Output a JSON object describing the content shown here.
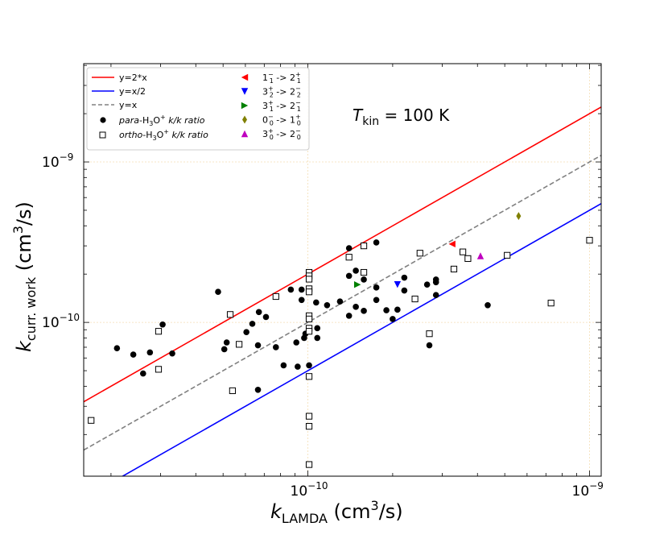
{
  "chart_data": {
    "type": "scatter",
    "xscale": "log",
    "yscale": "log",
    "xlim": [
      1.6e-11,
      1.1e-09
    ],
    "ylim": [
      1.1e-11,
      4.1e-09
    ],
    "xticks": [
      {
        "value": 1e-10,
        "base": "10",
        "exp": "−10"
      },
      {
        "value": 1e-09,
        "base": "10",
        "exp": "−9"
      }
    ],
    "yticks": [
      {
        "value": 1e-10,
        "base": "10",
        "exp": "−10"
      },
      {
        "value": 1e-09,
        "base": "10",
        "exp": "−9"
      }
    ],
    "grid": true,
    "xlabel": {
      "main": "k",
      "sub": "LAMDA",
      "unit_pre": " (cm",
      "unit_exp": "3",
      "unit_post": "/s)"
    },
    "ylabel": {
      "main": "k",
      "sub": "curr. work",
      "unit_pre": " (cm",
      "unit_exp": "3",
      "unit_post": "/s)"
    },
    "annotation": {
      "main": "T",
      "sub": "kin",
      "rest": " = 100 K"
    },
    "lines": [
      {
        "name": "y=2*x",
        "factor": 2,
        "color": "#ff0000",
        "style": "solid"
      },
      {
        "name": "y=x/2",
        "factor": 0.5,
        "color": "#0000ff",
        "style": "solid"
      },
      {
        "name": "y=x",
        "factor": 1,
        "color": "#808080",
        "style": "dashed"
      }
    ],
    "legend": {
      "placement": "top-left",
      "col1": [
        {
          "label": "y=2*x"
        },
        {
          "label": "y=x/2"
        },
        {
          "label": "y=x"
        },
        {
          "pre": "para",
          "mid": "-H",
          "sub1": "3",
          "mid2": "O",
          "sup": "+",
          "post": " k/k ratio"
        },
        {
          "pre": "ortho",
          "mid": "-H",
          "sub1": "3",
          "mid2": "O",
          "sup": "+",
          "post": " k/k ratio"
        }
      ]
    },
    "series": [
      {
        "name": "para-H3O+ k/k ratio",
        "marker": "filled-circle",
        "color": "#000000",
        "points": [
          [
            2.1e-11,
            6.9e-11
          ],
          [
            2.4e-11,
            6.3e-11
          ],
          [
            2.6e-11,
            4.8e-11
          ],
          [
            2.75e-11,
            6.5e-11
          ],
          [
            3.05e-11,
            9.7e-11
          ],
          [
            3.3e-11,
            6.4e-11
          ],
          [
            4.8e-11,
            1.55e-10
          ],
          [
            5.05e-11,
            6.8e-11
          ],
          [
            5.15e-11,
            7.5e-11
          ],
          [
            6.05e-11,
            8.7e-11
          ],
          [
            6.35e-11,
            9.8e-11
          ],
          [
            6.7e-11,
            1.16e-10
          ],
          [
            6.65e-11,
            3.8e-11
          ],
          [
            6.65e-11,
            7.2e-11
          ],
          [
            7.1e-11,
            1.08e-10
          ],
          [
            7.7e-11,
            7e-11
          ],
          [
            8.2e-11,
            5.4e-11
          ],
          [
            8.7e-11,
            1.6e-10
          ],
          [
            9.2e-11,
            5.3e-11
          ],
          [
            9.1e-11,
            7.5e-11
          ],
          [
            9.5e-11,
            1.38e-10
          ],
          [
            9.5e-11,
            1.6e-10
          ],
          [
            9.7e-11,
            8e-11
          ],
          [
            9.8e-11,
            8.5e-11
          ],
          [
            1.01e-10,
            5.4e-11
          ],
          [
            1.01e-10,
            9e-11
          ],
          [
            1.01e-10,
            1.05e-10
          ],
          [
            1.07e-10,
            1.33e-10
          ],
          [
            1.08e-10,
            8e-11
          ],
          [
            1.08e-10,
            9.2e-11
          ],
          [
            1.17e-10,
            1.28e-10
          ],
          [
            1.3e-10,
            1.35e-10
          ],
          [
            1.4e-10,
            2.9e-10
          ],
          [
            1.4e-10,
            1.95e-10
          ],
          [
            1.4e-10,
            1.1e-10
          ],
          [
            1.48e-10,
            2.1e-10
          ],
          [
            1.48e-10,
            1.25e-10
          ],
          [
            1.58e-10,
            1.85e-10
          ],
          [
            1.58e-10,
            1.18e-10
          ],
          [
            1.75e-10,
            3.15e-10
          ],
          [
            1.75e-10,
            1.65e-10
          ],
          [
            1.75e-10,
            1.38e-10
          ],
          [
            1.9e-10,
            1.19e-10
          ],
          [
            2e-10,
            1.05e-10
          ],
          [
            2.08e-10,
            1.2e-10
          ],
          [
            2.2e-10,
            1.9e-10
          ],
          [
            2.2e-10,
            1.58e-10
          ],
          [
            2.65e-10,
            1.72e-10
          ],
          [
            2.7e-10,
            7.2e-11
          ],
          [
            2.85e-10,
            1.85e-10
          ],
          [
            2.85e-10,
            1.78e-10
          ],
          [
            2.85e-10,
            1.48e-10
          ],
          [
            4.35e-10,
            1.28e-10
          ]
        ]
      },
      {
        "name": "ortho-H3O+ k/k ratio",
        "marker": "open-square",
        "color": "#000000",
        "points": [
          [
            1.7e-11,
            2.45e-11
          ],
          [
            2.95e-11,
            8.8e-11
          ],
          [
            2.95e-11,
            5.1e-11
          ],
          [
            5.3e-11,
            1.12e-10
          ],
          [
            5.4e-11,
            3.75e-11
          ],
          [
            5.7e-11,
            7.3e-11
          ],
          [
            7.7e-11,
            1.45e-10
          ],
          [
            1.01e-10,
            2.05e-10
          ],
          [
            1.01e-10,
            1.95e-10
          ],
          [
            1.01e-10,
            1.86e-10
          ],
          [
            1.01e-10,
            1.62e-10
          ],
          [
            1.01e-10,
            1.55e-10
          ],
          [
            1.01e-10,
            1.1e-10
          ],
          [
            1.01e-10,
            1.05e-10
          ],
          [
            1.01e-10,
            9.2e-11
          ],
          [
            1.01e-10,
            8.8e-11
          ],
          [
            1.01e-10,
            4.6e-11
          ],
          [
            1.01e-10,
            2.6e-11
          ],
          [
            1.01e-10,
            2.25e-11
          ],
          [
            1.01e-10,
            1.3e-11
          ],
          [
            1.4e-10,
            2.55e-10
          ],
          [
            1.58e-10,
            3e-10
          ],
          [
            1.58e-10,
            2.05e-10
          ],
          [
            2.4e-10,
            1.4e-10
          ],
          [
            2.5e-10,
            2.7e-10
          ],
          [
            2.7e-10,
            8.5e-11
          ],
          [
            3.3e-10,
            2.15e-10
          ],
          [
            3.55e-10,
            2.75e-10
          ],
          [
            3.7e-10,
            2.5e-10
          ],
          [
            5.1e-10,
            2.62e-10
          ],
          [
            7.3e-10,
            1.32e-10
          ],
          [
            1e-09,
            3.25e-10
          ]
        ]
      },
      {
        "name": "1_1^- -> 2_1^+",
        "marker": "triangle-left",
        "color": "#ff0000",
        "label": {
          "a": "1",
          "a_sub": "1",
          "a_sup": "−",
          "b": "2",
          "b_sub": "1",
          "b_sup": "+"
        },
        "points": [
          [
            3.25e-10,
            3.08e-10
          ]
        ]
      },
      {
        "name": "3_2^+ -> 2_2^-",
        "marker": "triangle-down",
        "color": "#0000ff",
        "label": {
          "a": "3",
          "a_sub": "2",
          "a_sup": "+",
          "b": "2",
          "b_sub": "2",
          "b_sup": "−"
        },
        "points": [
          [
            2.08e-10,
            1.72e-10
          ]
        ]
      },
      {
        "name": "3_1^+ -> 2_1^-",
        "marker": "triangle-right",
        "color": "#008000",
        "label": {
          "a": "3",
          "a_sub": "1",
          "a_sup": "+",
          "b": "2",
          "b_sub": "1",
          "b_sup": "−"
        },
        "points": [
          [
            1.5e-10,
            1.72e-10
          ]
        ]
      },
      {
        "name": "0_0^- -> 1_0^+",
        "marker": "thin-diamond",
        "color": "#808000",
        "label": {
          "a": "0",
          "a_sub": "0",
          "a_sup": "−",
          "b": "1",
          "b_sub": "0",
          "b_sup": "+"
        },
        "points": [
          [
            5.6e-10,
            4.6e-10
          ]
        ]
      },
      {
        "name": "3_0^+ -> 2_0^-",
        "marker": "triangle-up",
        "color": "#bf00bf",
        "label": {
          "a": "3",
          "a_sub": "0",
          "a_sup": "+",
          "b": "2",
          "b_sub": "0",
          "b_sup": "−"
        },
        "points": [
          [
            4.1e-10,
            2.6e-10
          ]
        ]
      }
    ]
  }
}
